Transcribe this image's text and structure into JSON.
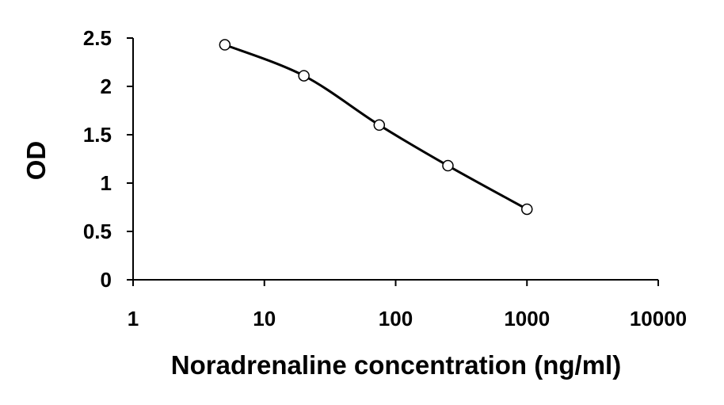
{
  "chart_data": {
    "type": "line",
    "title": "",
    "xlabel": "Noradrenaline concentration (ng/ml)",
    "ylabel": "OD",
    "x_scale": "log",
    "xlim": [
      1,
      10000
    ],
    "ylim": [
      0,
      2.5
    ],
    "x_ticks": [
      "1",
      "10",
      "100",
      "1000",
      "10000"
    ],
    "y_ticks": [
      "0",
      "0.5",
      "1",
      "1.5",
      "2",
      "2.5"
    ],
    "grid": false,
    "legend": "none",
    "series": [
      {
        "x": [
          5,
          20,
          75,
          250,
          1000
        ],
        "y": [
          2.43,
          2.11,
          1.6,
          1.18,
          0.73
        ],
        "line_color": "#000000",
        "marker": "open-circle"
      }
    ]
  }
}
